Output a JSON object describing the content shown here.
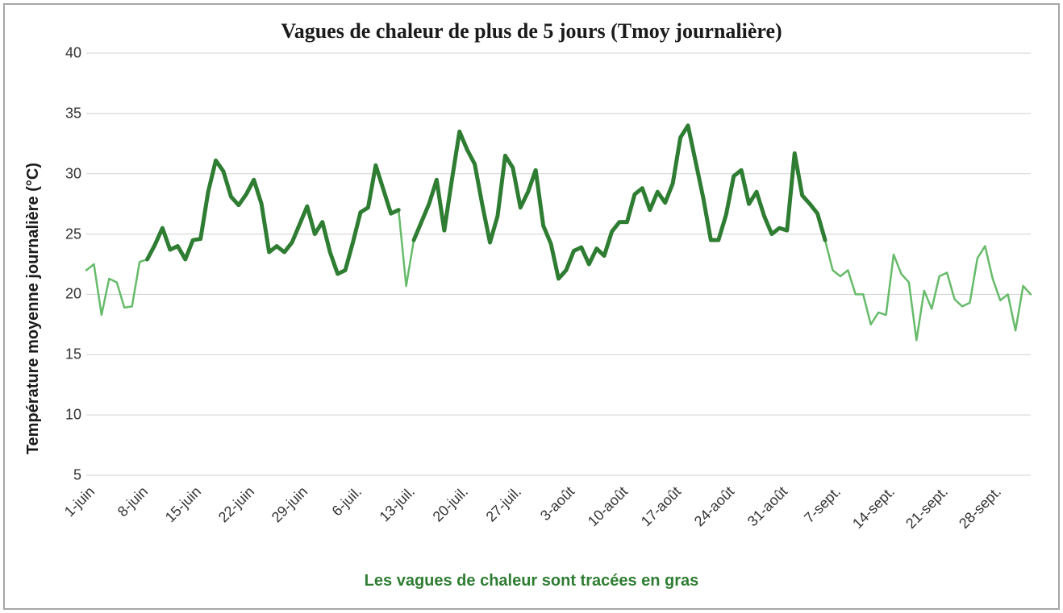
{
  "chart": {
    "type": "line",
    "title": "Vagues de chaleur de plus de 5 jours (Tmoy journalière)",
    "title_fontsize": 26,
    "title_font": "Georgia, serif",
    "ylabel": "Température moyenne journalière (°C)",
    "ylabel_fontsize": 20,
    "caption": "Les vagues de chaleur sont tracées en gras",
    "caption_color": "#2e7d32",
    "caption_fontsize": 20,
    "background_color": "#ffffff",
    "border_color": "#a6a6a6",
    "grid_color": "#d0d0d0",
    "axis_font_color": "#333333",
    "tick_fontsize": 18,
    "ylim": [
      5,
      40
    ],
    "yticks": [
      5,
      10,
      15,
      20,
      25,
      30,
      35,
      40
    ],
    "x_labels": [
      "1-juin",
      "8-juin",
      "15-juin",
      "22-juin",
      "29-juin",
      "6-juil.",
      "13-juil.",
      "20-juil.",
      "27-juil.",
      "3-août",
      "10-août",
      "17-août",
      "24-août",
      "31-août",
      "7-sept.",
      "14-sept.",
      "21-sept.",
      "28-sept."
    ],
    "x_tick_step": 7,
    "series": {
      "start_index": 0,
      "values": [
        22.0,
        22.5,
        18.3,
        21.3,
        21.0,
        18.9,
        19.0,
        22.7,
        22.9,
        24.1,
        25.5,
        23.7,
        24.0,
        22.9,
        24.5,
        24.6,
        28.5,
        31.1,
        30.2,
        28.1,
        27.4,
        28.3,
        29.5,
        27.5,
        23.5,
        24.0,
        23.5,
        24.3,
        25.8,
        27.3,
        25.0,
        26.0,
        23.5,
        21.7,
        22.0,
        24.3,
        26.8,
        27.2,
        30.7,
        28.7,
        26.7,
        27.0,
        20.7,
        24.5,
        26.0,
        27.5,
        29.5,
        25.3,
        29.5,
        33.5,
        32.0,
        30.8,
        27.4,
        24.3,
        26.5,
        31.5,
        30.5,
        27.2,
        28.5,
        30.3,
        25.7,
        24.2,
        21.3,
        22.0,
        23.6,
        23.9,
        22.5,
        23.8,
        23.2,
        25.2,
        26.0,
        26.0,
        28.3,
        28.8,
        27.0,
        28.5,
        27.6,
        29.2,
        33.0,
        34.0,
        31.0,
        28.0,
        24.5,
        24.5,
        26.6,
        29.8,
        30.3,
        27.5,
        28.5,
        26.5,
        25.0,
        25.5,
        25.3,
        31.7,
        28.2,
        27.5,
        26.7,
        24.5,
        22.0,
        21.5,
        22.0,
        20.0,
        20.0,
        17.5,
        18.5,
        18.3,
        23.3,
        21.7,
        21.0,
        16.2,
        20.3,
        18.8,
        21.5,
        21.8,
        19.6,
        19.0,
        19.3,
        23.0,
        24.0,
        21.3,
        19.5,
        20.0,
        17.0,
        20.7,
        20.0
      ],
      "heatwave_color": "#2e7d32",
      "normal_color": "#66bb6a",
      "heatwave_width": 5,
      "normal_width": 2.5,
      "heatwave_ranges": [
        [
          8,
          41
        ],
        [
          43,
          97
        ]
      ]
    }
  }
}
